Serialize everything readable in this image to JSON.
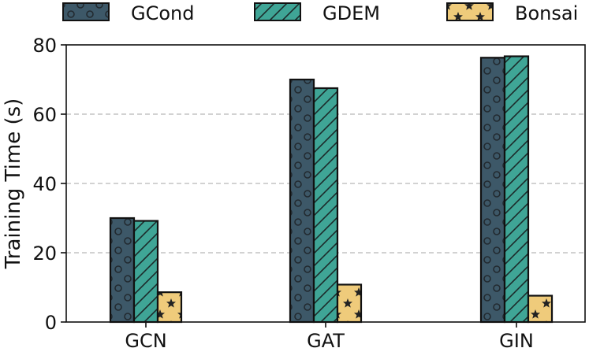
{
  "chart_data": {
    "type": "bar",
    "title": "",
    "xlabel": "",
    "ylabel": "Training Time (s)",
    "ylim": [
      0,
      80
    ],
    "yticks": [
      0,
      20,
      40,
      60,
      80
    ],
    "grid": true,
    "legend_position": "top",
    "categories": [
      "GCN",
      "GAT",
      "GIN"
    ],
    "series": [
      {
        "name": "GCond",
        "values": [
          30,
          70,
          76.3
        ],
        "color": "#3d5868",
        "pattern": "circles"
      },
      {
        "name": "GDEM",
        "values": [
          29.2,
          67.5,
          76.7
        ],
        "color": "#3fa596",
        "pattern": "diagonal-hatch"
      },
      {
        "name": "Bonsai",
        "values": [
          8.6,
          10.8,
          7.6
        ],
        "color": "#efcb7b",
        "pattern": "stars"
      }
    ]
  }
}
